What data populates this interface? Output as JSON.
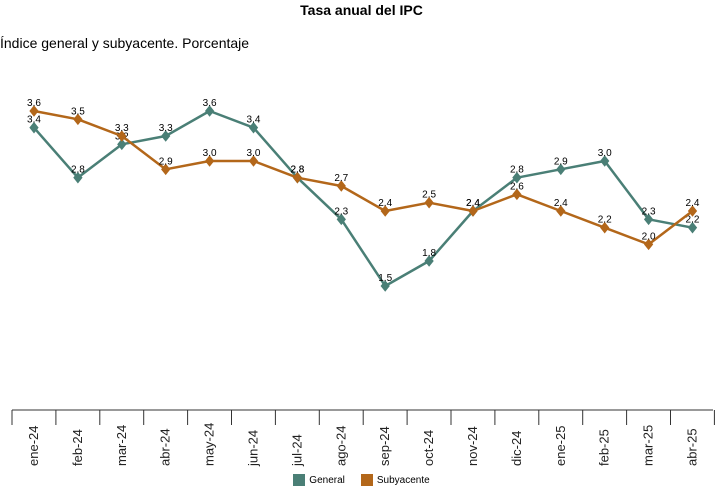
{
  "chart_data": {
    "type": "line",
    "title": "Tasa anual del IPC",
    "subtitle": "Índice general y subyacente. Porcentaje",
    "categories": [
      "ene-24",
      "feb-24",
      "mar-24",
      "abr-24",
      "may-24",
      "jun-24",
      "jul-24",
      "ago-24",
      "sep-24",
      "oct-24",
      "nov-24",
      "dic-24",
      "ene-25",
      "feb-25",
      "mar-25",
      "abr-25"
    ],
    "series": [
      {
        "name": "General",
        "color": "#4a7f76",
        "values": [
          3.4,
          2.8,
          3.2,
          3.3,
          3.6,
          3.4,
          2.8,
          2.3,
          1.5,
          1.8,
          2.4,
          2.8,
          2.9,
          3.0,
          2.3,
          2.2
        ]
      },
      {
        "name": "Subyacente",
        "color": "#b3671a",
        "values": [
          3.6,
          3.5,
          3.3,
          2.9,
          3.0,
          3.0,
          2.8,
          2.7,
          2.4,
          2.5,
          2.4,
          2.6,
          2.4,
          2.2,
          2.0,
          2.4
        ]
      }
    ],
    "ylim": [
      0,
      4
    ],
    "grid": false,
    "legend_position": "bottom"
  }
}
